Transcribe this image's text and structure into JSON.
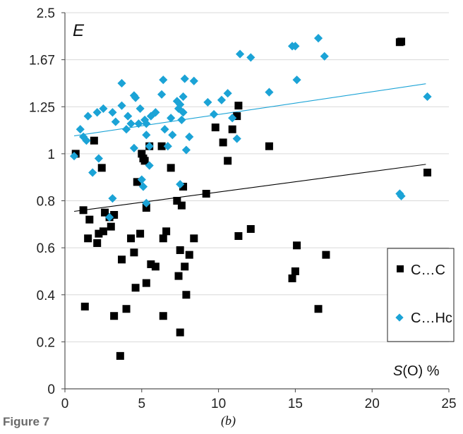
{
  "figure_label": "Figure 7",
  "panel_label": "(b)",
  "chart_data": {
    "type": "scatter",
    "y_label_text": "E",
    "x_label_var": "S",
    "x_label_rest": "(O)  %",
    "xlim": [
      0,
      25
    ],
    "ylim": [
      0,
      2.5
    ],
    "x_ticks": [
      0,
      5,
      10,
      15,
      20,
      25
    ],
    "y_ticks": [
      0,
      0.2,
      0.4,
      0.6,
      0.8,
      1,
      1.25,
      1.67,
      2.5
    ],
    "y_tick_labels": [
      "0",
      "0.2",
      "0.4",
      "0.6",
      "0.8",
      "1",
      "1.25",
      "1.67",
      "2.5"
    ],
    "y_scale": "reciprocal",
    "grid": "horizontal",
    "legend_position": "right",
    "series": [
      {
        "name": "C…C",
        "color": "#000000",
        "marker": "square",
        "trend": {
          "x": [
            0.6,
            23.5
          ],
          "y": [
            0.755,
            0.955
          ]
        },
        "points": [
          [
            0.7,
            1.0
          ],
          [
            1.2,
            0.76
          ],
          [
            1.3,
            0.35
          ],
          [
            1.5,
            0.64
          ],
          [
            1.6,
            0.72
          ],
          [
            1.9,
            1.07
          ],
          [
            2.1,
            0.62
          ],
          [
            2.2,
            0.66
          ],
          [
            2.4,
            0.94
          ],
          [
            2.5,
            0.67
          ],
          [
            2.6,
            0.75
          ],
          [
            2.9,
            0.73
          ],
          [
            3.0,
            0.69
          ],
          [
            3.2,
            0.31
          ],
          [
            3.2,
            0.74
          ],
          [
            3.6,
            0.14
          ],
          [
            3.7,
            0.55
          ],
          [
            4.0,
            0.34
          ],
          [
            4.3,
            0.64
          ],
          [
            4.5,
            0.58
          ],
          [
            4.6,
            0.43
          ],
          [
            4.7,
            0.88
          ],
          [
            4.9,
            0.66
          ],
          [
            5.0,
            1.0
          ],
          [
            5.1,
            0.98
          ],
          [
            5.2,
            0.97
          ],
          [
            5.3,
            0.45
          ],
          [
            5.3,
            0.77
          ],
          [
            5.5,
            1.04
          ],
          [
            5.6,
            0.53
          ],
          [
            5.9,
            0.52
          ],
          [
            6.3,
            1.04
          ],
          [
            6.4,
            0.31
          ],
          [
            6.4,
            0.64
          ],
          [
            6.6,
            0.67
          ],
          [
            6.9,
            0.94
          ],
          [
            7.3,
            0.8
          ],
          [
            7.4,
            0.48
          ],
          [
            7.5,
            0.24
          ],
          [
            7.5,
            0.59
          ],
          [
            7.6,
            0.78
          ],
          [
            7.7,
            0.86
          ],
          [
            7.8,
            0.52
          ],
          [
            7.9,
            0.4
          ],
          [
            8.1,
            0.57
          ],
          [
            8.4,
            0.64
          ],
          [
            9.2,
            0.83
          ],
          [
            9.8,
            1.14
          ],
          [
            10.3,
            1.06
          ],
          [
            10.6,
            0.97
          ],
          [
            10.9,
            1.13
          ],
          [
            11.2,
            1.2
          ],
          [
            11.3,
            1.26
          ],
          [
            11.3,
            0.65
          ],
          [
            12.1,
            0.68
          ],
          [
            13.3,
            1.04
          ],
          [
            14.8,
            0.47
          ],
          [
            15.0,
            0.5
          ],
          [
            15.1,
            0.61
          ],
          [
            16.5,
            0.34
          ],
          [
            17.0,
            0.57
          ],
          [
            21.8,
            1.98
          ],
          [
            21.9,
            1.99
          ],
          [
            23.6,
            0.92
          ]
        ]
      },
      {
        "name": "C…Hc",
        "color": "#1ba3d6",
        "marker": "diamond",
        "trend": {
          "x": [
            0.6,
            23.5
          ],
          "y": [
            1.095,
            1.455
          ]
        },
        "points": [
          [
            0.6,
            0.99
          ],
          [
            1.0,
            1.13
          ],
          [
            1.2,
            1.09
          ],
          [
            1.4,
            1.07
          ],
          [
            1.5,
            1.2
          ],
          [
            1.8,
            0.92
          ],
          [
            2.1,
            1.22
          ],
          [
            2.2,
            0.98
          ],
          [
            2.5,
            1.24
          ],
          [
            2.9,
            0.73
          ],
          [
            3.1,
            1.22
          ],
          [
            3.1,
            0.81
          ],
          [
            3.3,
            1.17
          ],
          [
            3.7,
            1.26
          ],
          [
            3.7,
            1.46
          ],
          [
            4.0,
            1.13
          ],
          [
            4.1,
            1.2
          ],
          [
            4.3,
            1.16
          ],
          [
            4.5,
            1.03
          ],
          [
            4.5,
            1.35
          ],
          [
            4.6,
            1.33
          ],
          [
            4.8,
            1.16
          ],
          [
            4.9,
            1.24
          ],
          [
            5.0,
            0.89
          ],
          [
            5.1,
            0.86
          ],
          [
            5.2,
            1.18
          ],
          [
            5.3,
            0.79
          ],
          [
            5.3,
            1.1
          ],
          [
            5.3,
            1.16
          ],
          [
            5.5,
            0.95
          ],
          [
            5.5,
            1.04
          ],
          [
            5.6,
            1.2
          ],
          [
            5.9,
            1.22
          ],
          [
            6.3,
            1.36
          ],
          [
            6.4,
            1.49
          ],
          [
            6.5,
            1.13
          ],
          [
            6.7,
            1.04
          ],
          [
            6.9,
            1.19
          ],
          [
            7.0,
            1.1
          ],
          [
            7.3,
            1.3
          ],
          [
            7.4,
            1.24
          ],
          [
            7.5,
            1.27
          ],
          [
            7.5,
            0.87
          ],
          [
            7.6,
            1.18
          ],
          [
            7.7,
            1.22
          ],
          [
            7.7,
            1.34
          ],
          [
            7.8,
            1.5
          ],
          [
            7.9,
            1.02
          ],
          [
            8.1,
            1.09
          ],
          [
            8.4,
            1.48
          ],
          [
            9.3,
            1.29
          ],
          [
            9.7,
            1.21
          ],
          [
            10.2,
            1.31
          ],
          [
            10.6,
            1.37
          ],
          [
            10.9,
            1.19
          ],
          [
            11.2,
            1.08
          ],
          [
            11.4,
            1.77
          ],
          [
            12.1,
            1.71
          ],
          [
            13.3,
            1.38
          ],
          [
            14.8,
            1.91
          ],
          [
            15.0,
            1.91
          ],
          [
            15.1,
            1.49
          ],
          [
            16.5,
            2.05
          ],
          [
            16.9,
            1.73
          ],
          [
            21.8,
            0.83
          ],
          [
            21.9,
            0.82
          ],
          [
            23.6,
            1.34
          ]
        ]
      }
    ]
  }
}
